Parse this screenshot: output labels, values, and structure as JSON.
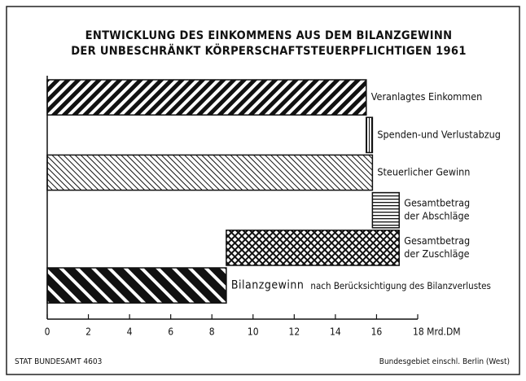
{
  "chart_data": {
    "type": "waterfall",
    "title": [
      "ENTWICKLUNG DES EINKOMMENS AUS DEM BILANZGEWINN",
      "DER UNBESCHRÄNKT KÖRPERSCHAFTSTEUERPFLICHTIGEN 1961"
    ],
    "categories": [
      [
        "Veranlagtes Einkommen"
      ],
      [
        "Spenden-und Verlustabzug"
      ],
      [
        "Steuerlicher Gewinn"
      ],
      [
        "Gesamtbetrag",
        "der Abschläge"
      ],
      [
        "Gesamtbetrag",
        "der Zuschläge"
      ],
      [
        "Bilanzgewinn",
        "nach Berücksichtigung des Bilanzverlustes"
      ]
    ],
    "values": [
      15.5,
      0.3,
      15.8,
      1.3,
      -8.4,
      8.7
    ],
    "is_total": [
      true,
      false,
      true,
      false,
      false,
      true
    ],
    "xlim": [
      0,
      18
    ],
    "xticks": [
      0,
      2,
      4,
      6,
      8,
      10,
      12,
      14,
      16,
      {
        "value": 18,
        "label": "18 Mrd.DM"
      }
    ],
    "source": "STAT BUNDESAMT 4603",
    "note": "Bundesgebiet einschl. Berlin (West)"
  }
}
